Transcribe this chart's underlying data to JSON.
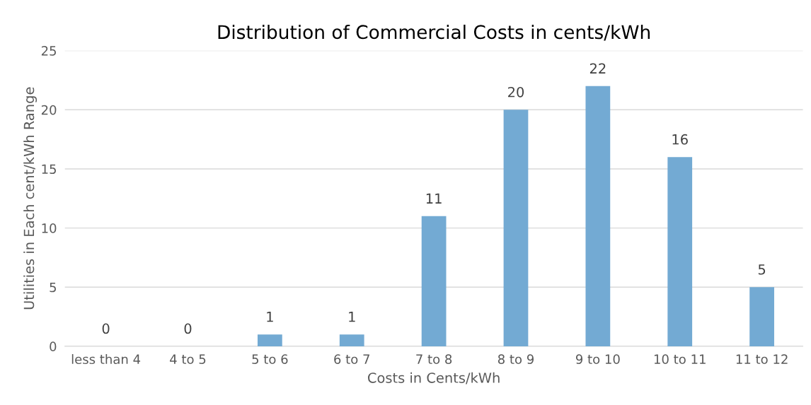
{
  "chart_data": {
    "type": "bar",
    "title": "Distribution of Commercial Costs in cents/kWh",
    "xlabel": "Costs in Cents/kWh",
    "ylabel": "Utilities in Each cent/kWh Range",
    "categories": [
      "less than 4",
      "4 to 5",
      "5 to 6",
      "6 to 7",
      "7 to 8",
      "8 to 9",
      "9 to 10",
      "10 to 11",
      "11 to 12"
    ],
    "values": [
      0,
      0,
      1,
      1,
      11,
      20,
      22,
      16,
      5
    ],
    "color": "#73aad3",
    "ylim": [
      0,
      25
    ],
    "yticks": [
      0,
      5,
      10,
      15,
      20,
      25
    ],
    "grid": "y",
    "data_labels": true,
    "legend": false
  }
}
